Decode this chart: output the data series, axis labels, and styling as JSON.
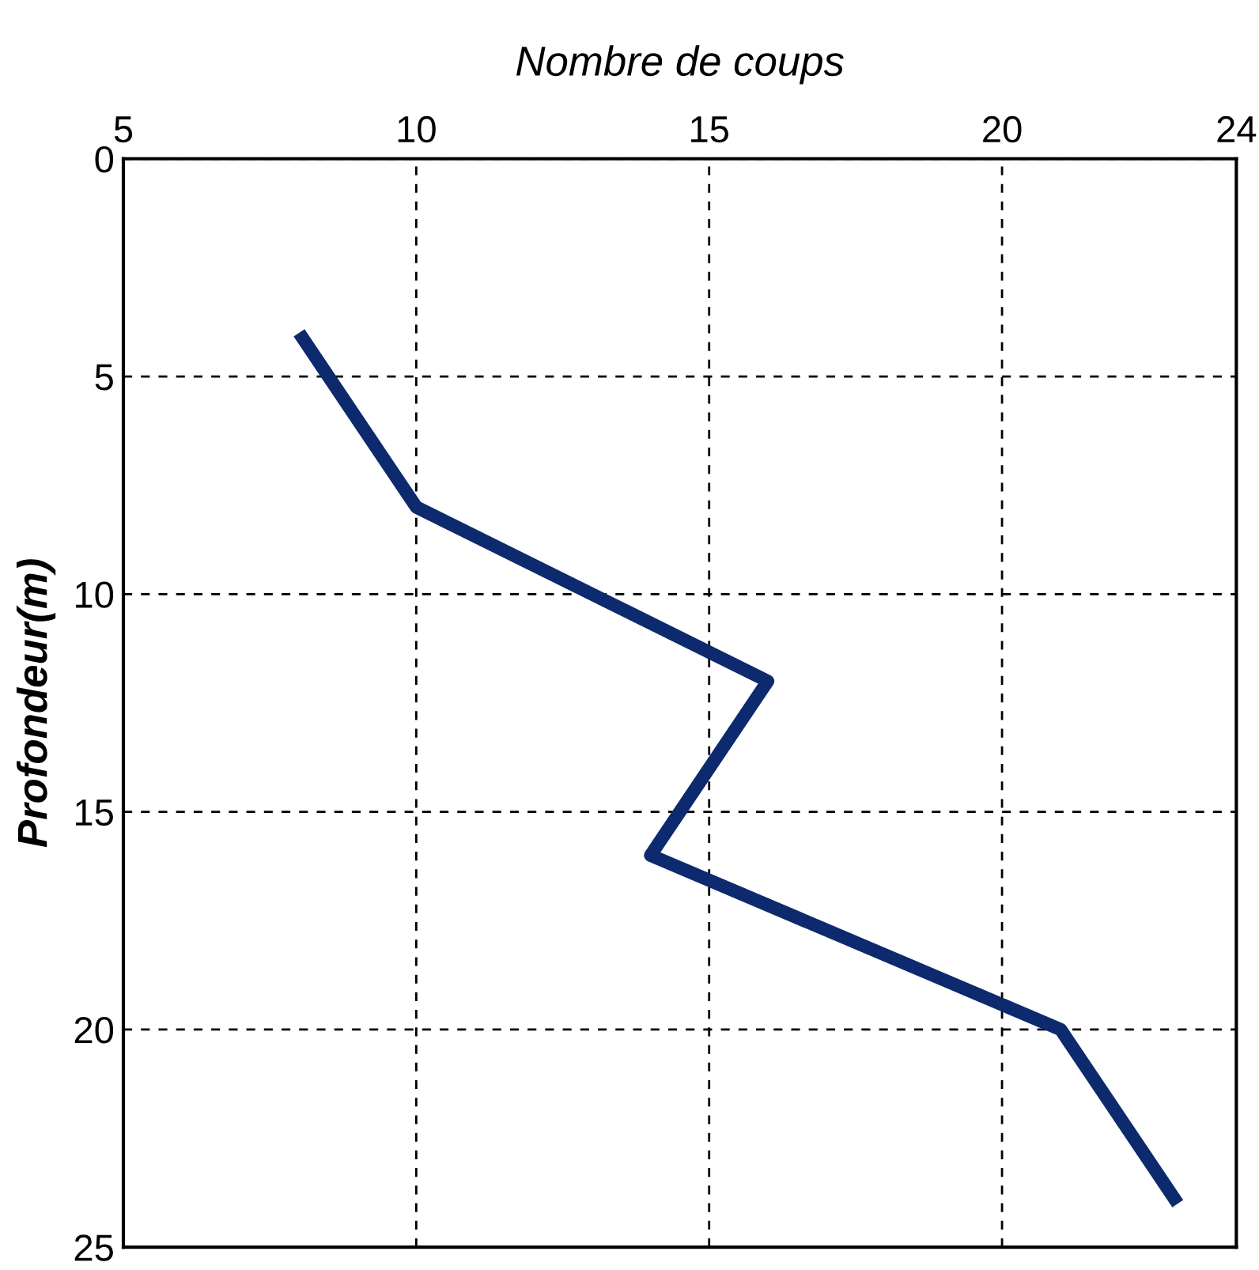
{
  "chart_data": {
    "type": "line",
    "xlabel": "Nombre de coups",
    "ylabel": "Profondeur(m)",
    "x": [
      8,
      10,
      16,
      14,
      21,
      23
    ],
    "series": [
      {
        "color": "#0d2a6e",
        "values": [
          4,
          8,
          12,
          16,
          20,
          24
        ]
      }
    ],
    "xlim": [
      5,
      24
    ],
    "xticks": [
      5,
      10,
      15,
      20,
      24
    ],
    "ylim": [
      25,
      0
    ],
    "yticks": [
      0,
      5,
      10,
      15,
      20,
      25
    ],
    "grid": true,
    "line_style": "solid",
    "marker": "none"
  }
}
